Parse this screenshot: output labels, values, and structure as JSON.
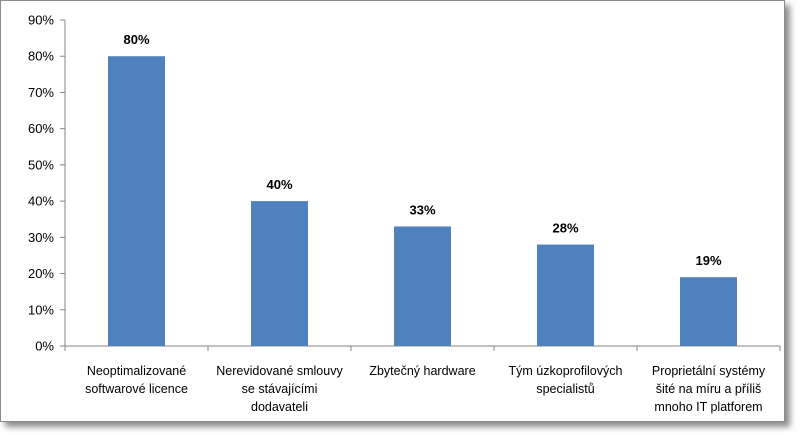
{
  "chart_data": {
    "type": "bar",
    "title": "",
    "xlabel": "",
    "ylabel": "",
    "categories": [
      [
        "Neoptimalizované",
        "softwarové licence"
      ],
      [
        "Nerevidované smlouvy",
        "se stávajícími",
        "dodavateli"
      ],
      [
        "Zbytečný hardware"
      ],
      [
        "Tým úzkoprofilových",
        "specialistů"
      ],
      [
        "Proprietální systémy",
        "šité na míru a příliš",
        "mnoho IT platforem"
      ]
    ],
    "values": [
      80,
      40,
      33,
      28,
      19
    ],
    "data_labels": [
      "80%",
      "40%",
      "33%",
      "28%",
      "19%"
    ],
    "y_ticks": [
      "0%",
      "10%",
      "20%",
      "30%",
      "40%",
      "50%",
      "60%",
      "70%",
      "80%",
      "90%"
    ],
    "ylim": [
      0,
      90
    ],
    "grid": false,
    "legend": "none",
    "bar_color": "#4F81BD",
    "axis_color": "#868686"
  }
}
